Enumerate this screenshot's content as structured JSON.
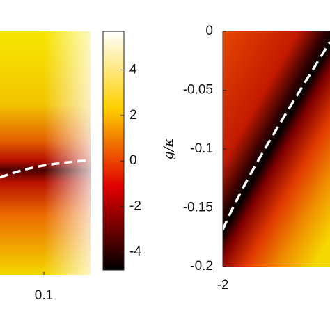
{
  "chart_data": [
    {
      "type": "heatmap-left",
      "xlim": [
        0.05,
        0.15
      ],
      "xticks": [
        0.1
      ]
    },
    {
      "type": "colorbar",
      "ylim": [
        -4.8,
        5.7
      ],
      "yticks": [
        4,
        2,
        0,
        -2,
        -4
      ]
    },
    {
      "type": "heatmap-right",
      "ylabel": "g/κ",
      "xlim": [
        -2,
        -1
      ],
      "xticks": [
        -2
      ],
      "ylim": [
        -0.2,
        0
      ],
      "yticks": [
        0,
        -0.05,
        -0.1,
        -0.15,
        -0.2
      ]
    }
  ]
}
